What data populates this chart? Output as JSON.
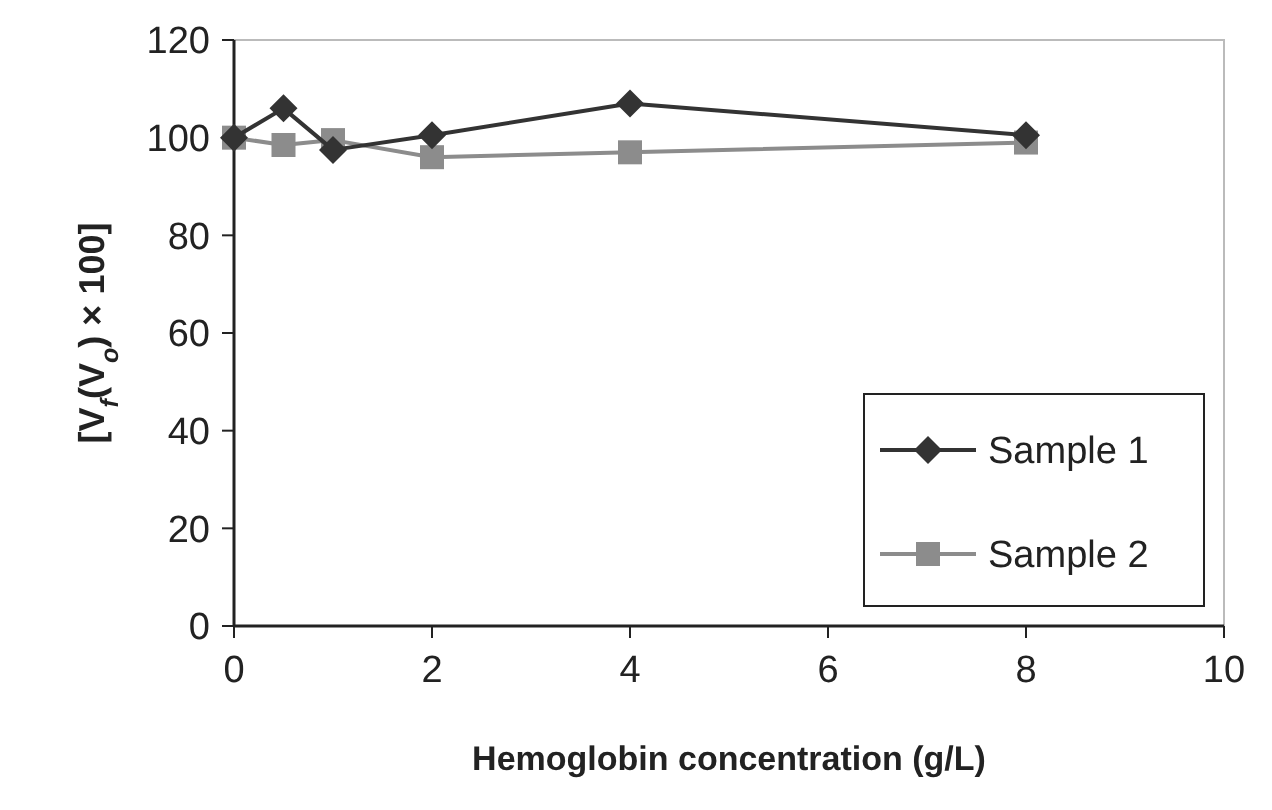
{
  "chart_data": {
    "type": "line",
    "xlabel": "Hemoglobin concentration (g/L)",
    "ylabel": "[V$_{f}$(V$_{o}$) × 100]",
    "xlim": [
      0,
      10
    ],
    "xticks": [
      0,
      2,
      4,
      6,
      8,
      10
    ],
    "ylim": [
      0,
      120
    ],
    "yticks": [
      0,
      20,
      40,
      60,
      80,
      100,
      120
    ],
    "grid": false,
    "legend": "bottom right",
    "line_style": "solid",
    "series": [
      {
        "name": "Sample 1",
        "color": "#333333",
        "marker": "diamond",
        "x": [
          0,
          0.5,
          1,
          2,
          4,
          8
        ],
        "values": [
          100,
          106,
          97.5,
          100.5,
          107,
          100.5
        ]
      },
      {
        "name": "Sample 2",
        "color": "#8c8c8c",
        "marker": "square",
        "x": [
          0,
          0.5,
          1,
          2,
          4,
          8
        ],
        "values": [
          100,
          98.5,
          99.5,
          96,
          97,
          99
        ]
      }
    ]
  }
}
